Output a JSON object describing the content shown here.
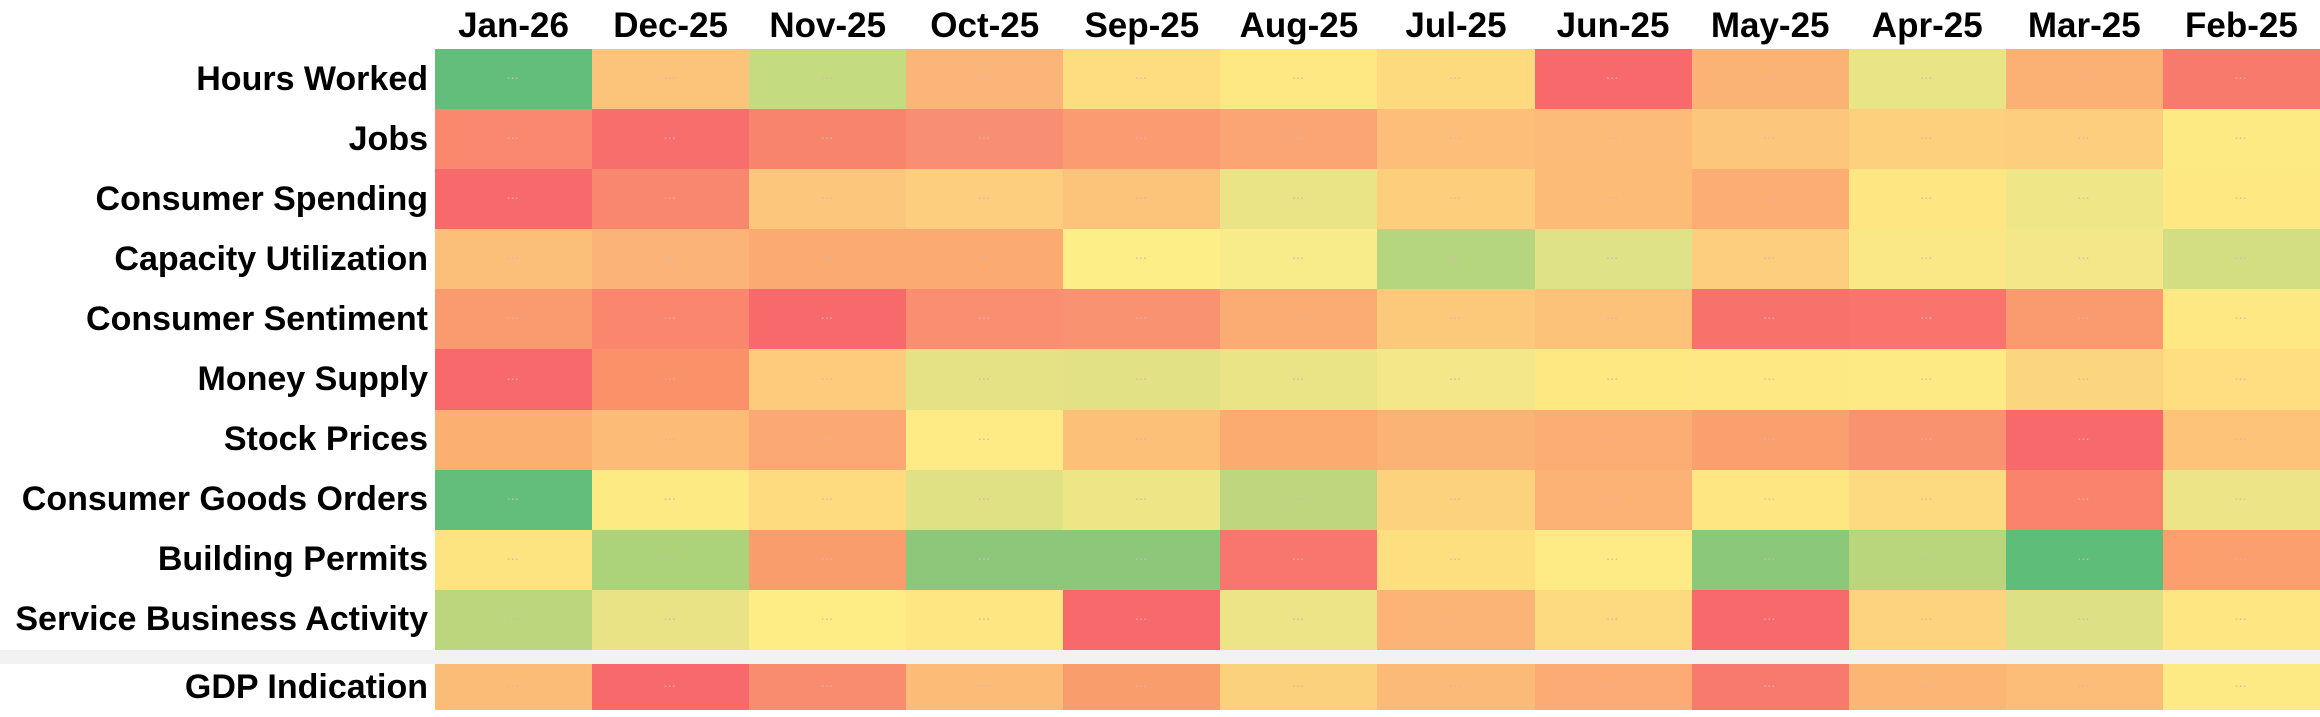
{
  "chart_data": {
    "type": "heatmap",
    "title": "",
    "columns": [
      "Jan-26",
      "Dec-25",
      "Nov-25",
      "Oct-25",
      "Sep-25",
      "Aug-25",
      "Jul-25",
      "Jun-25",
      "May-25",
      "Apr-25",
      "Mar-25",
      "Feb-25"
    ],
    "rows": [
      "Hours Worked",
      "Jobs",
      "Consumer Spending",
      "Capacity Utilization",
      "Consumer Sentiment",
      "Money Supply",
      "Stock Prices",
      "Consumer Goods Orders",
      "Building Permits",
      "Service Business Activity"
    ],
    "summary_row_label": "GDP Indication",
    "cell_colors": [
      [
        "#63BE7B",
        "#FCC37B",
        "#C5DB7F",
        "#FBB578",
        "#FEDD81",
        "#FEE883",
        "#FEDA7F",
        "#F8696B",
        "#FBB275",
        "#E9E587",
        "#FBB174",
        "#F87A6D"
      ],
      [
        "#F9886E",
        "#F86E6C",
        "#F9846C",
        "#F98F72",
        "#FA9B71",
        "#FBA575",
        "#FCBE79",
        "#FCBB78",
        "#FCC77C",
        "#FDD07E",
        "#FDCE7D",
        "#FDEA83"
      ],
      [
        "#F8696B",
        "#F9876E",
        "#FCC67C",
        "#FDCE7D",
        "#FCC47B",
        "#EAE486",
        "#FDCF7D",
        "#FCBB77",
        "#FBAD73",
        "#FEE782",
        "#EFE687",
        "#FEE882"
      ],
      [
        "#FCBF7A",
        "#FBB377",
        "#FBAB72",
        "#FBAB72",
        "#FEEE87",
        "#F7EC89",
        "#B5D67E",
        "#DFE286",
        "#FCCE7D",
        "#FAE886",
        "#F2E88A",
        "#D3DD81"
      ],
      [
        "#FA9A6F",
        "#F9866D",
        "#F8696B",
        "#F98E71",
        "#F99270",
        "#FBAC72",
        "#FCC97B",
        "#FCC279",
        "#F8726C",
        "#F8746D",
        "#FA9A6F",
        "#FEE883"
      ],
      [
        "#F8696B",
        "#FA9169",
        "#FCCB7C",
        "#E5E285",
        "#E2E185",
        "#EBE486",
        "#F3E789",
        "#FEE882",
        "#FEE883",
        "#FEEA84",
        "#FCD67E",
        "#FEDE81"
      ],
      [
        "#FBB072",
        "#FCBB76",
        "#FBA873",
        "#FEEB85",
        "#FCC078",
        "#FBAB70",
        "#FBB375",
        "#FBAD73",
        "#FA9F6E",
        "#F9926E",
        "#F8696B",
        "#FCC379"
      ],
      [
        "#63BE7B",
        "#FDEA83",
        "#FEDB7F",
        "#E0E185",
        "#EEE587",
        "#BED77E",
        "#FDD27D",
        "#FBB274",
        "#FEE782",
        "#FDD980",
        "#F9836B",
        "#ECE486"
      ],
      [
        "#FEE481",
        "#ACD37A",
        "#FA9D6D",
        "#8DC87A",
        "#8DC87A",
        "#F8766D",
        "#FEDF80",
        "#FEEB85",
        "#8CC87A",
        "#BAD67D",
        "#5EBD78",
        "#FA9F6D"
      ],
      [
        "#BBD67D",
        "#EAE386",
        "#FEED85",
        "#FEE682",
        "#F8696B",
        "#EDE487",
        "#FBB476",
        "#FDD980",
        "#F8696B",
        "#FDD37E",
        "#DDE084",
        "#FEE682"
      ]
    ],
    "summary_colors": [
      "#FBBC77",
      "#F8696B",
      "#F98B6F",
      "#FCBB77",
      "#FA9D6D",
      "#FCD17C",
      "#FBBA77",
      "#FBAB73",
      "#F87A6E",
      "#FBB575",
      "#FCBD78",
      "#FEEA84"
    ],
    "color_scale": {
      "low": "#F8696B",
      "mid": "#FFEB84",
      "high": "#63BE7B"
    },
    "cell_values_legible": false,
    "cell_mark": "▪▪▪",
    "separator_color": "#F2F2F2",
    "legend": "none",
    "grid": "off"
  }
}
